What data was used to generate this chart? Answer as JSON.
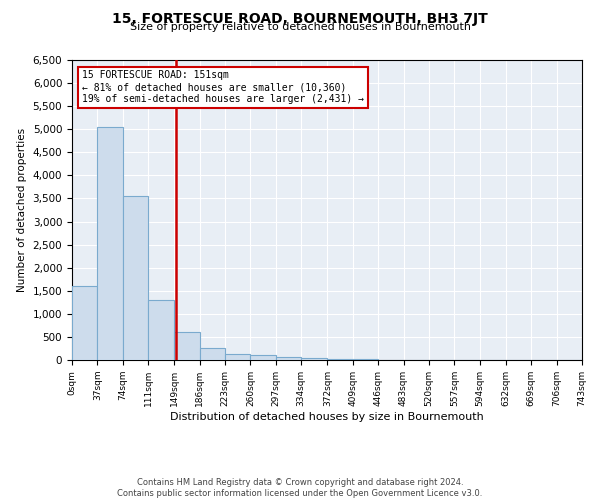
{
  "title": "15, FORTESCUE ROAD, BOURNEMOUTH, BH3 7JT",
  "subtitle": "Size of property relative to detached houses in Bournemouth",
  "xlabel": "Distribution of detached houses by size in Bournemouth",
  "ylabel": "Number of detached properties",
  "footer_line1": "Contains HM Land Registry data © Crown copyright and database right 2024.",
  "footer_line2": "Contains public sector information licensed under the Open Government Licence v3.0.",
  "annotation_title": "15 FORTESCUE ROAD: 151sqm",
  "annotation_line1": "← 81% of detached houses are smaller (10,360)",
  "annotation_line2": "19% of semi-detached houses are larger (2,431) →",
  "property_size": 151,
  "bar_color": "#cddcec",
  "bar_edge_color": "#7aaace",
  "vline_color": "#cc0000",
  "annotation_box_color": "#cc0000",
  "ylim": [
    0,
    6500
  ],
  "bin_edges": [
    0,
    37,
    74,
    111,
    149,
    186,
    223,
    260,
    297,
    334,
    372,
    409,
    446,
    483,
    520,
    557,
    594,
    632,
    669,
    706,
    743
  ],
  "bin_labels": [
    "0sqm",
    "37sqm",
    "74sqm",
    "111sqm",
    "149sqm",
    "186sqm",
    "223sqm",
    "260sqm",
    "297sqm",
    "334sqm",
    "372sqm",
    "409sqm",
    "446sqm",
    "483sqm",
    "520sqm",
    "557sqm",
    "594sqm",
    "632sqm",
    "669sqm",
    "706sqm",
    "743sqm"
  ],
  "bar_heights": [
    1600,
    5050,
    3550,
    1300,
    600,
    260,
    140,
    100,
    60,
    40,
    30,
    20,
    10,
    6,
    4,
    3,
    2,
    2,
    1,
    1
  ],
  "background_color": "#e8eef5",
  "grid_color": "#ffffff",
  "yticks": [
    0,
    500,
    1000,
    1500,
    2000,
    2500,
    3000,
    3500,
    4000,
    4500,
    5000,
    5500,
    6000,
    6500
  ]
}
